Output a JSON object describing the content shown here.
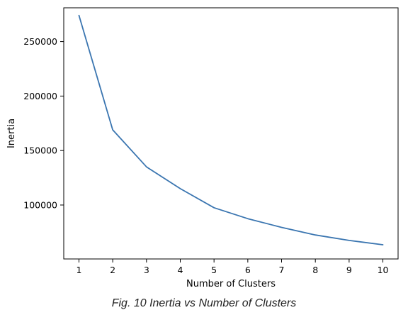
{
  "caption": "Fig. 10 Inertia vs Number of Clusters",
  "chart_data": {
    "type": "line",
    "title": "",
    "xlabel": "Number of Clusters",
    "ylabel": "Inertia",
    "x": [
      1,
      2,
      3,
      4,
      5,
      6,
      7,
      8,
      9,
      10
    ],
    "series": [
      {
        "values": [
          274000,
          169000,
          135000,
          115000,
          97500,
          87500,
          79500,
          72500,
          67500,
          63500
        ],
        "color": "#3a75b0"
      }
    ],
    "xlim": [
      0.55,
      10.45
    ],
    "ylim": [
      50500,
      281000
    ],
    "xticks": [
      1,
      2,
      3,
      4,
      5,
      6,
      7,
      8,
      9,
      10
    ],
    "yticks": [
      100000,
      150000,
      200000,
      250000
    ],
    "grid": false,
    "legend": "none"
  }
}
